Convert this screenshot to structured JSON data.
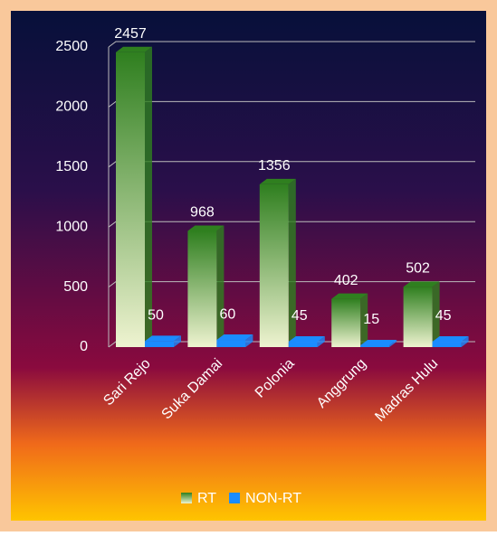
{
  "chart_data": {
    "type": "bar",
    "categories": [
      "Sari Rejo",
      "Suka Damai",
      "Polonia",
      "Anggrung",
      "Madras Hulu"
    ],
    "series": [
      {
        "name": "RT",
        "color": "#2f7f1f",
        "values": [
          2457,
          968,
          1356,
          402,
          502
        ]
      },
      {
        "name": "NON-RT",
        "color": "#1a8cff",
        "values": [
          50,
          60,
          45,
          15,
          45
        ]
      }
    ],
    "ylim": [
      0,
      2500
    ],
    "yticks": [
      0,
      500,
      1000,
      1500,
      2000,
      2500
    ],
    "grid": true,
    "legend": "bottom"
  }
}
